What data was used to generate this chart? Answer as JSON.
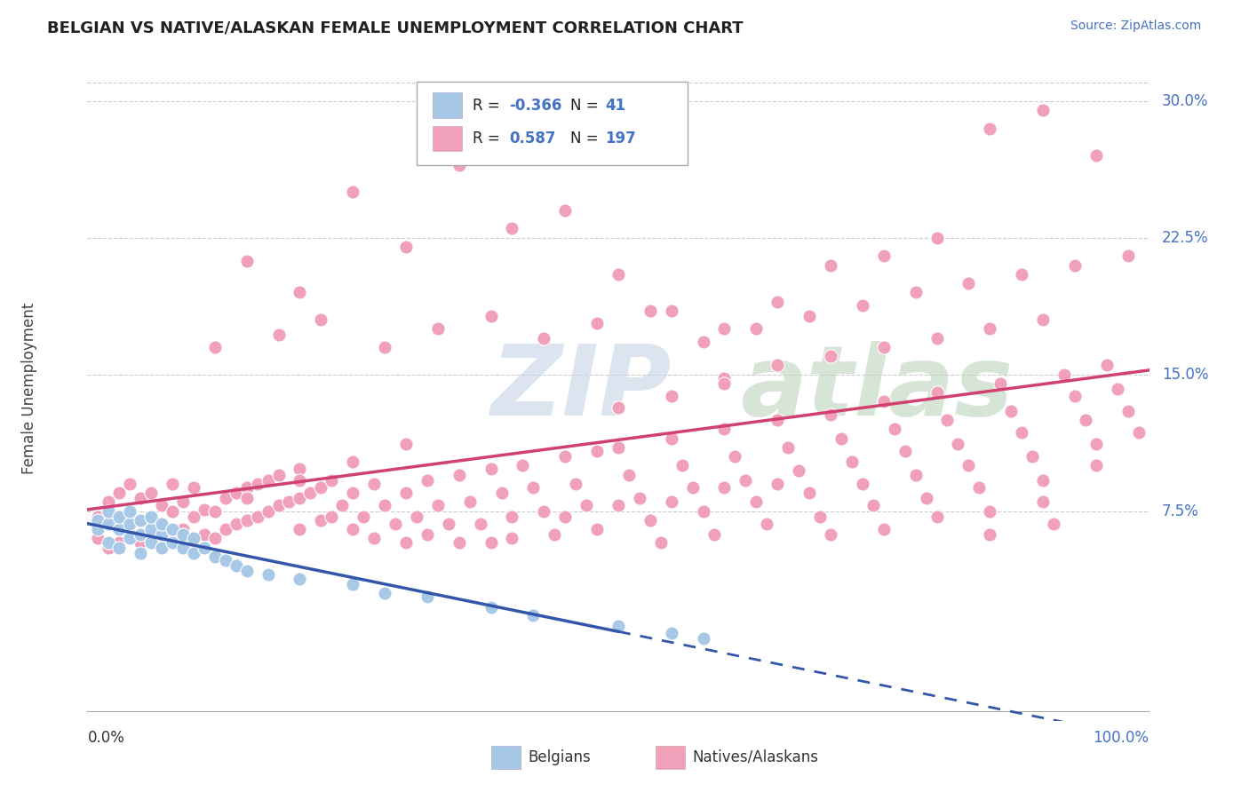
{
  "title": "BELGIAN VS NATIVE/ALASKAN FEMALE UNEMPLOYMENT CORRELATION CHART",
  "source": "Source: ZipAtlas.com",
  "ylabel": "Female Unemployment",
  "xlim": [
    0.0,
    1.0
  ],
  "ylim": [
    -0.04,
    0.325
  ],
  "belgian_color": "#a8c8e8",
  "belgian_line_color": "#3355aa",
  "native_color": "#f0a0b8",
  "native_line_color": "#d04070",
  "watermark_zip": "ZIP",
  "watermark_atlas": "atlas",
  "watermark_color_zip": "#c5d8ea",
  "watermark_color_atlas": "#c8dfc8",
  "bg_color": "#ffffff",
  "grid_color": "#cccccc",
  "ytick_vals": [
    0.075,
    0.15,
    0.225,
    0.3
  ],
  "ytick_labels": [
    "7.5%",
    "15.0%",
    "22.5%",
    "30.0%"
  ],
  "bel_x": [
    0.01,
    0.01,
    0.02,
    0.02,
    0.02,
    0.03,
    0.03,
    0.03,
    0.04,
    0.04,
    0.04,
    0.05,
    0.05,
    0.05,
    0.06,
    0.06,
    0.06,
    0.07,
    0.07,
    0.07,
    0.08,
    0.08,
    0.09,
    0.09,
    0.1,
    0.1,
    0.11,
    0.12,
    0.13,
    0.14,
    0.15,
    0.17,
    0.2,
    0.25,
    0.28,
    0.32,
    0.38,
    0.42,
    0.5,
    0.55,
    0.58
  ],
  "bel_y": [
    0.065,
    0.07,
    0.058,
    0.068,
    0.075,
    0.055,
    0.065,
    0.072,
    0.06,
    0.068,
    0.075,
    0.052,
    0.062,
    0.07,
    0.058,
    0.065,
    0.072,
    0.055,
    0.062,
    0.068,
    0.058,
    0.065,
    0.055,
    0.062,
    0.052,
    0.06,
    0.055,
    0.05,
    0.048,
    0.045,
    0.042,
    0.04,
    0.038,
    0.035,
    0.03,
    0.028,
    0.022,
    0.018,
    0.012,
    0.008,
    0.005
  ],
  "nat_x": [
    0.01,
    0.01,
    0.02,
    0.02,
    0.02,
    0.03,
    0.03,
    0.03,
    0.04,
    0.04,
    0.04,
    0.05,
    0.05,
    0.05,
    0.06,
    0.06,
    0.06,
    0.07,
    0.07,
    0.07,
    0.08,
    0.08,
    0.08,
    0.09,
    0.09,
    0.1,
    0.1,
    0.1,
    0.11,
    0.11,
    0.12,
    0.12,
    0.13,
    0.13,
    0.14,
    0.14,
    0.15,
    0.15,
    0.16,
    0.16,
    0.17,
    0.17,
    0.18,
    0.18,
    0.19,
    0.2,
    0.2,
    0.2,
    0.21,
    0.22,
    0.22,
    0.23,
    0.23,
    0.24,
    0.25,
    0.25,
    0.26,
    0.27,
    0.27,
    0.28,
    0.29,
    0.3,
    0.3,
    0.31,
    0.32,
    0.32,
    0.33,
    0.34,
    0.35,
    0.35,
    0.36,
    0.37,
    0.38,
    0.38,
    0.39,
    0.4,
    0.4,
    0.41,
    0.42,
    0.43,
    0.44,
    0.45,
    0.45,
    0.46,
    0.47,
    0.48,
    0.48,
    0.5,
    0.5,
    0.51,
    0.52,
    0.53,
    0.54,
    0.55,
    0.55,
    0.56,
    0.57,
    0.58,
    0.59,
    0.6,
    0.6,
    0.61,
    0.62,
    0.63,
    0.64,
    0.65,
    0.65,
    0.66,
    0.67,
    0.68,
    0.69,
    0.7,
    0.7,
    0.71,
    0.72,
    0.73,
    0.74,
    0.75,
    0.75,
    0.76,
    0.77,
    0.78,
    0.79,
    0.8,
    0.8,
    0.81,
    0.82,
    0.83,
    0.84,
    0.85,
    0.85,
    0.86,
    0.87,
    0.88,
    0.89,
    0.9,
    0.9,
    0.91,
    0.92,
    0.93,
    0.94,
    0.95,
    0.95,
    0.96,
    0.97,
    0.98,
    0.99,
    0.15,
    0.2,
    0.25,
    0.3,
    0.35,
    0.4,
    0.45,
    0.5,
    0.55,
    0.6,
    0.65,
    0.7,
    0.75,
    0.8,
    0.85,
    0.9,
    0.95,
    0.12,
    0.18,
    0.22,
    0.28,
    0.33,
    0.38,
    0.43,
    0.48,
    0.53,
    0.58,
    0.63,
    0.68,
    0.73,
    0.78,
    0.83,
    0.88,
    0.93,
    0.98,
    0.1,
    0.15,
    0.2,
    0.25,
    0.3,
    0.6,
    0.65,
    0.7,
    0.75,
    0.8,
    0.85,
    0.9,
    0.5,
    0.55,
    0.6
  ],
  "nat_y": [
    0.06,
    0.072,
    0.055,
    0.068,
    0.08,
    0.058,
    0.072,
    0.085,
    0.062,
    0.075,
    0.09,
    0.058,
    0.07,
    0.082,
    0.06,
    0.072,
    0.085,
    0.058,
    0.068,
    0.078,
    0.06,
    0.075,
    0.09,
    0.065,
    0.08,
    0.058,
    0.072,
    0.088,
    0.062,
    0.076,
    0.06,
    0.075,
    0.065,
    0.082,
    0.068,
    0.085,
    0.07,
    0.088,
    0.072,
    0.09,
    0.075,
    0.092,
    0.078,
    0.095,
    0.08,
    0.065,
    0.082,
    0.098,
    0.085,
    0.07,
    0.088,
    0.072,
    0.092,
    0.078,
    0.065,
    0.085,
    0.072,
    0.06,
    0.09,
    0.078,
    0.068,
    0.058,
    0.085,
    0.072,
    0.062,
    0.092,
    0.078,
    0.068,
    0.058,
    0.095,
    0.08,
    0.068,
    0.058,
    0.098,
    0.085,
    0.072,
    0.06,
    0.1,
    0.088,
    0.075,
    0.062,
    0.072,
    0.105,
    0.09,
    0.078,
    0.065,
    0.108,
    0.078,
    0.11,
    0.095,
    0.082,
    0.07,
    0.058,
    0.08,
    0.115,
    0.1,
    0.088,
    0.075,
    0.062,
    0.088,
    0.12,
    0.105,
    0.092,
    0.08,
    0.068,
    0.09,
    0.125,
    0.11,
    0.097,
    0.085,
    0.072,
    0.062,
    0.128,
    0.115,
    0.102,
    0.09,
    0.078,
    0.065,
    0.135,
    0.12,
    0.108,
    0.095,
    0.082,
    0.072,
    0.14,
    0.125,
    0.112,
    0.1,
    0.088,
    0.075,
    0.062,
    0.145,
    0.13,
    0.118,
    0.105,
    0.092,
    0.08,
    0.068,
    0.15,
    0.138,
    0.125,
    0.112,
    0.1,
    0.155,
    0.142,
    0.13,
    0.118,
    0.212,
    0.195,
    0.25,
    0.22,
    0.265,
    0.23,
    0.24,
    0.205,
    0.185,
    0.175,
    0.19,
    0.21,
    0.215,
    0.225,
    0.285,
    0.295,
    0.27,
    0.165,
    0.172,
    0.18,
    0.165,
    0.175,
    0.182,
    0.17,
    0.178,
    0.185,
    0.168,
    0.175,
    0.182,
    0.188,
    0.195,
    0.2,
    0.205,
    0.21,
    0.215,
    0.072,
    0.082,
    0.092,
    0.102,
    0.112,
    0.148,
    0.155,
    0.16,
    0.165,
    0.17,
    0.175,
    0.18,
    0.132,
    0.138,
    0.145
  ]
}
